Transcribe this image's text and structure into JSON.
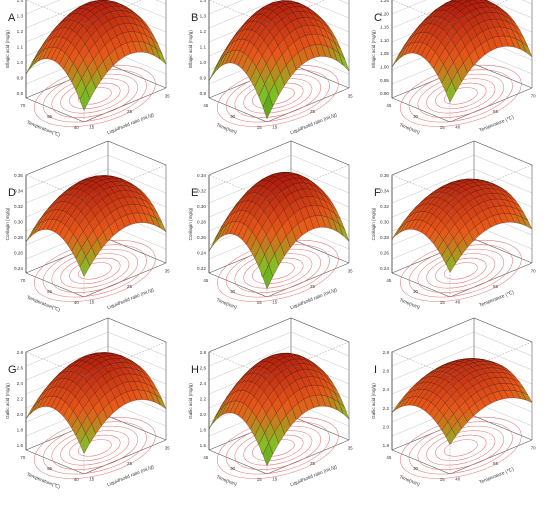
{
  "figure": {
    "panels": [
      {
        "letter": "A",
        "zlabel": "Ellagic acid (mg/g)",
        "xlabel": "Liquid/solid ratio (mL/g)",
        "ylabel": "Temperature(℃)",
        "zticks": [
          "0.8",
          "0.9",
          "1.0",
          "1.1",
          "1.2",
          "1.3",
          "1.4"
        ],
        "xticks": [
          "15",
          "25",
          "35"
        ],
        "yticks": [
          "40",
          "55",
          "70"
        ]
      },
      {
        "letter": "B",
        "zlabel": "Ellagic acid (mg/g)",
        "xlabel": "Liquid/solid ratio (mL/g)",
        "ylabel": "Time(min)",
        "zticks": [
          "0.8",
          "0.9",
          "1.0",
          "1.1",
          "1.2",
          "1.3",
          "1.4"
        ],
        "xticks": [
          "15",
          "25",
          "35"
        ],
        "yticks": [
          "15",
          "30",
          "45"
        ]
      },
      {
        "letter": "C",
        "zlabel": "Ellagic acid (mg/g)",
        "xlabel": "Temperature (℃)",
        "ylabel": "Time(min)",
        "zticks": [
          "0.90",
          "0.95",
          "1.00",
          "1.05",
          "1.10",
          "1.15",
          "1.20",
          "1.25"
        ],
        "xticks": [
          "40",
          "55",
          "70"
        ],
        "yticks": [
          "15",
          "30",
          "45"
        ]
      },
      {
        "letter": "D",
        "zlabel": "Corilagin (mg/g)",
        "xlabel": "Liquid/solid ratio (mL/g)",
        "ylabel": "Temperature(℃)",
        "zticks": [
          "0.24",
          "0.26",
          "0.28",
          "0.30",
          "0.32",
          "0.34",
          "0.36"
        ],
        "xticks": [
          "15",
          "25",
          "35"
        ],
        "yticks": [
          "40",
          "55",
          "70"
        ]
      },
      {
        "letter": "E",
        "zlabel": "Corilagin (mg/g)",
        "xlabel": "Liquid/solid ratio (mL/g)",
        "ylabel": "Time(min)",
        "zticks": [
          "0.22",
          "0.24",
          "0.26",
          "0.28",
          "0.30",
          "0.32",
          "0.34"
        ],
        "xticks": [
          "15",
          "25",
          "35"
        ],
        "yticks": [
          "15",
          "30",
          "45"
        ]
      },
      {
        "letter": "F",
        "zlabel": "Corilagin (mg/g)",
        "xlabel": "Temperature (℃)",
        "ylabel": "Time(min)",
        "zticks": [
          "0.24",
          "0.26",
          "0.28",
          "0.30",
          "0.32",
          "0.34",
          "0.36"
        ],
        "xticks": [
          "40",
          "55",
          "70"
        ],
        "yticks": [
          "15",
          "30",
          "45"
        ]
      },
      {
        "letter": "G",
        "zlabel": "Gallic acid (mg/g)",
        "xlabel": "Liquid/solid ratio (mL/g)",
        "ylabel": "Temperature(℃)",
        "zticks": [
          "1.6",
          "1.8",
          "2.0",
          "2.2",
          "2.4",
          "2.6",
          "2.8"
        ],
        "xticks": [
          "15",
          "25",
          "35"
        ],
        "yticks": [
          "40",
          "55",
          "70"
        ]
      },
      {
        "letter": "H",
        "zlabel": "Gallic acid (mg/g)",
        "xlabel": "Liquid/solid ratio (mL/g)",
        "ylabel": "Time(min)",
        "zticks": [
          "1.6",
          "1.8",
          "2.0",
          "2.2",
          "2.4",
          "2.6",
          "2.8"
        ],
        "xticks": [
          "15",
          "25",
          "35"
        ],
        "yticks": [
          "15",
          "30",
          "45"
        ]
      },
      {
        "letter": "I",
        "zlabel": "Gallic acid (mg/g)",
        "xlabel": "Temperature (℃)",
        "ylabel": "Time(min)",
        "zticks": [
          "1.8",
          "2.0",
          "2.2",
          "2.4",
          "2.6",
          "2.8"
        ],
        "xticks": [
          "40",
          "55",
          "70"
        ],
        "yticks": [
          "15",
          "30",
          "45"
        ]
      }
    ],
    "colors": {
      "high": "#a10e0c",
      "mid": "#e8591a",
      "low": "#7fc425",
      "lowest": "#3f8d10",
      "contour": "#e06a6a"
    }
  },
  "chart_data": [
    {
      "type": "surface",
      "panel": "A",
      "xlabel": "Liquid/solid ratio (mL/g)",
      "ylabel": "Temperature(℃)",
      "zlabel": "Ellagic acid (mg/g)",
      "xlim": [
        15,
        35
      ],
      "ylim": [
        40,
        70
      ],
      "zlim": [
        0.8,
        1.4
      ],
      "z_max": 1.33,
      "z_corner_low": 0.87
    },
    {
      "type": "surface",
      "panel": "B",
      "xlabel": "Liquid/solid ratio (mL/g)",
      "ylabel": "Time(min)",
      "zlabel": "Ellagic acid (mg/g)",
      "xlim": [
        15,
        35
      ],
      "ylim": [
        15,
        45
      ],
      "zlim": [
        0.8,
        1.4
      ],
      "z_max": 1.33,
      "z_corner_low": 0.82
    },
    {
      "type": "surface",
      "panel": "C",
      "xlabel": "Temperature (℃)",
      "ylabel": "Time(min)",
      "zlabel": "Ellagic acid (mg/g)",
      "xlim": [
        40,
        70
      ],
      "ylim": [
        15,
        45
      ],
      "zlim": [
        0.9,
        1.25
      ],
      "z_max": 1.22,
      "z_corner_low": 0.97
    },
    {
      "type": "surface",
      "panel": "D",
      "xlabel": "Liquid/solid ratio (mL/g)",
      "ylabel": "Temperature(℃)",
      "zlabel": "Corilagin (mg/g)",
      "xlim": [
        15,
        35
      ],
      "ylim": [
        40,
        70
      ],
      "zlim": [
        0.24,
        0.36
      ],
      "z_max": 0.345,
      "z_corner_low": 0.265
    },
    {
      "type": "surface",
      "panel": "E",
      "xlabel": "Liquid/solid ratio (mL/g)",
      "ylabel": "Time(min)",
      "zlabel": "Corilagin (mg/g)",
      "xlim": [
        15,
        35
      ],
      "ylim": [
        15,
        45
      ],
      "zlim": [
        0.22,
        0.34
      ],
      "z_max": 0.33,
      "z_corner_low": 0.23
    },
    {
      "type": "surface",
      "panel": "F",
      "xlabel": "Temperature (℃)",
      "ylabel": "Time(min)",
      "zlabel": "Corilagin (mg/g)",
      "xlim": [
        40,
        70
      ],
      "ylim": [
        15,
        45
      ],
      "zlim": [
        0.24,
        0.36
      ],
      "z_max": 0.34,
      "z_corner_low": 0.27
    },
    {
      "type": "surface",
      "panel": "G",
      "xlabel": "Liquid/solid ratio (mL/g)",
      "ylabel": "Temperature(℃)",
      "zlabel": "Gallic acid (mg/g)",
      "xlim": [
        15,
        35
      ],
      "ylim": [
        40,
        70
      ],
      "zlim": [
        1.6,
        2.8
      ],
      "z_max": 2.65,
      "z_corner_low": 1.85
    },
    {
      "type": "surface",
      "panel": "H",
      "xlabel": "Liquid/solid ratio (mL/g)",
      "ylabel": "Time(min)",
      "zlabel": "Gallic acid (mg/g)",
      "xlim": [
        15,
        35
      ],
      "ylim": [
        15,
        45
      ],
      "zlim": [
        1.6,
        2.8
      ],
      "z_max": 2.65,
      "z_corner_low": 1.7
    },
    {
      "type": "surface",
      "panel": "I",
      "xlabel": "Temperature (℃)",
      "ylabel": "Time(min)",
      "zlabel": "Gallic acid (mg/g)",
      "xlim": [
        40,
        70
      ],
      "ylim": [
        15,
        45
      ],
      "zlim": [
        1.8,
        2.8
      ],
      "z_max": 2.6,
      "z_corner_low": 2.1
    }
  ]
}
